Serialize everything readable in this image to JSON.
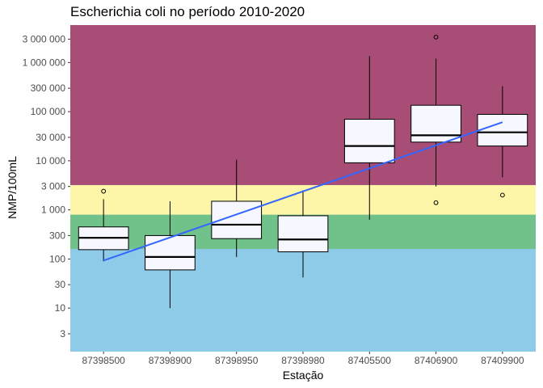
{
  "chart_data": {
    "type": "boxplot",
    "title": "Escherichia coli no período 2010-2020",
    "xlabel": "Estação",
    "ylabel": "NMP/100mL",
    "y_scale": "log10",
    "ylim": [
      1.3,
      5800000
    ],
    "y_ticks": [
      {
        "value": 3,
        "label": "3"
      },
      {
        "value": 10,
        "label": "10"
      },
      {
        "value": 30,
        "label": "30"
      },
      {
        "value": 100,
        "label": "100"
      },
      {
        "value": 300,
        "label": "300"
      },
      {
        "value": 1000,
        "label": "1 000"
      },
      {
        "value": 3000,
        "label": "3 000"
      },
      {
        "value": 10000,
        "label": "10 000"
      },
      {
        "value": 30000,
        "label": "30 000"
      },
      {
        "value": 100000,
        "label": "100 000"
      },
      {
        "value": 300000,
        "label": "300 000"
      },
      {
        "value": 1000000,
        "label": "1 000 000"
      },
      {
        "value": 3000000,
        "label": "3 000 000"
      }
    ],
    "bands": [
      {
        "from": 1.3,
        "to": 160,
        "color": "#8ecbe8"
      },
      {
        "from": 160,
        "to": 800,
        "color": "#70c18a"
      },
      {
        "from": 800,
        "to": 3200,
        "color": "#fdf5a7"
      },
      {
        "from": 3200,
        "to": 5800000,
        "color": "#a84e76"
      }
    ],
    "categories": [
      "87398500",
      "87398900",
      "87398950",
      "87398980",
      "87405500",
      "87406900",
      "87409900"
    ],
    "boxes": [
      {
        "whisker_low": 90,
        "q1": 155,
        "median": 270,
        "q3": 450,
        "whisker_high": 1650,
        "outliers": [
          2400
        ]
      },
      {
        "whisker_low": 10,
        "q1": 60,
        "median": 110,
        "q3": 300,
        "whisker_high": 1500,
        "outliers": []
      },
      {
        "whisker_low": 110,
        "q1": 260,
        "median": 500,
        "q3": 1500,
        "whisker_high": 10500,
        "outliers": []
      },
      {
        "whisker_low": 42,
        "q1": 140,
        "median": 250,
        "q3": 760,
        "whisker_high": 2500,
        "outliers": []
      },
      {
        "whisker_low": 630,
        "q1": 9100,
        "median": 20000,
        "q3": 70000,
        "whisker_high": 1350000,
        "outliers": []
      },
      {
        "whisker_low": 3000,
        "q1": 24000,
        "median": 33000,
        "q3": 135000,
        "whisker_high": 1200000,
        "outliers": [
          1400,
          3300000
        ]
      },
      {
        "whisker_low": 4600,
        "q1": 20000,
        "median": 38000,
        "q3": 88000,
        "whisker_high": 330000,
        "outliers": [
          2000
        ]
      }
    ],
    "trend_line": {
      "color": "#3366ff",
      "start": {
        "category": "87398500",
        "value": 93
      },
      "end": {
        "category": "87409900",
        "value": 61000
      }
    },
    "colors": {
      "box_fill": "#f7f8ff",
      "box_stroke": "#000000",
      "trend": "#3366ff"
    }
  }
}
